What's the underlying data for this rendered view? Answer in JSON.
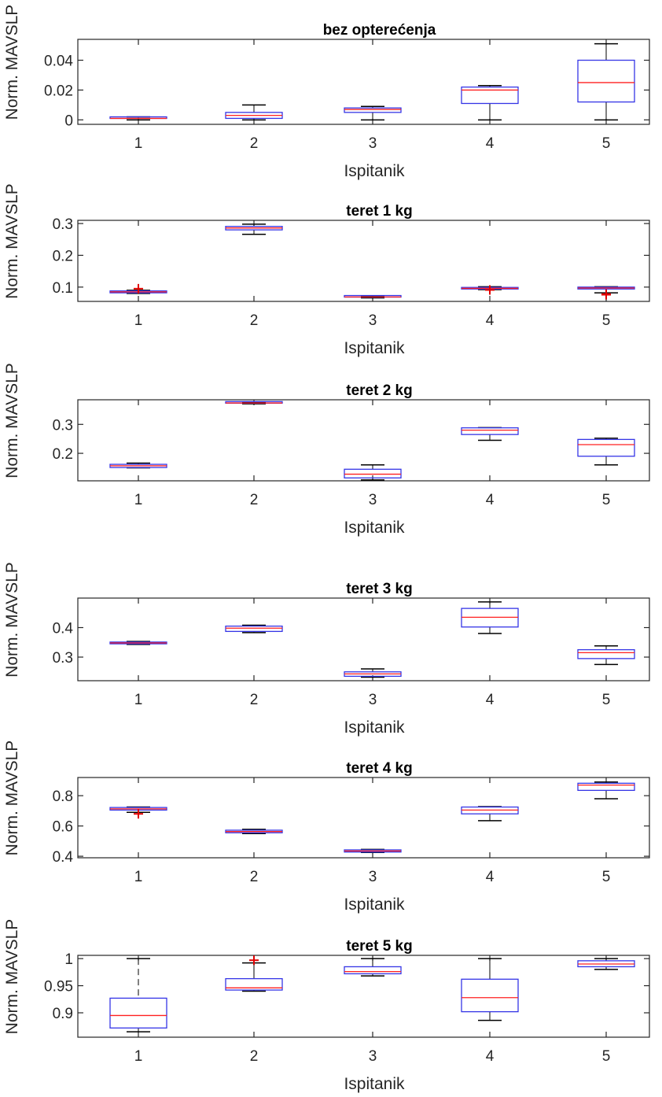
{
  "colors": {
    "box": "#3535e6",
    "median": "#ff2020",
    "whisker": "#000000",
    "outlier": "#e00000",
    "axis": "#262626",
    "text": "#262626"
  },
  "chart_data": [
    {
      "type": "box",
      "title": "bez opterećenja",
      "xlabel": "Ispitanik",
      "ylabel": "Norm. MAVSLP",
      "categories": [
        "1",
        "2",
        "3",
        "4",
        "5"
      ],
      "ylim": [
        -0.003,
        0.054
      ],
      "yticks": [
        0,
        0.02,
        0.04
      ],
      "ytick_labels": [
        "0",
        "0.02",
        "0.04"
      ],
      "boxes": [
        {
          "q1": 0.0005,
          "median": 0.001,
          "q3": 0.0015,
          "whisker_low": 0.0,
          "whisker_high": 0.002,
          "outliers": []
        },
        {
          "q1": 0.001,
          "median": 0.003,
          "q3": 0.005,
          "whisker_low": 0.0,
          "whisker_high": 0.01,
          "outliers": []
        },
        {
          "q1": 0.005,
          "median": 0.007,
          "q3": 0.008,
          "whisker_low": 0.0,
          "whisker_high": 0.009,
          "outliers": []
        },
        {
          "q1": 0.011,
          "median": 0.02,
          "q3": 0.022,
          "whisker_low": 0.0,
          "whisker_high": 0.023,
          "outliers": []
        },
        {
          "q1": 0.012,
          "median": 0.025,
          "q3": 0.04,
          "whisker_low": 0.0,
          "whisker_high": 0.051,
          "outliers": []
        }
      ]
    },
    {
      "type": "box",
      "title": "teret 1 kg",
      "xlabel": "Ispitanik",
      "ylabel": "Norm. MAVSLP",
      "categories": [
        "1",
        "2",
        "3",
        "4",
        "5"
      ],
      "ylim": [
        0.055,
        0.31
      ],
      "yticks": [
        0.1,
        0.2,
        0.3
      ],
      "ytick_labels": [
        "0.1",
        "0.2",
        "0.3"
      ],
      "boxes": [
        {
          "q1": 0.082,
          "median": 0.085,
          "q3": 0.088,
          "whisker_low": 0.08,
          "whisker_high": 0.09,
          "outliers": [
            0.095
          ]
        },
        {
          "q1": 0.28,
          "median": 0.286,
          "q3": 0.291,
          "whisker_low": 0.266,
          "whisker_high": 0.298,
          "outliers": []
        },
        {
          "q1": 0.067,
          "median": 0.069,
          "q3": 0.071,
          "whisker_low": 0.066,
          "whisker_high": 0.072,
          "outliers": []
        },
        {
          "q1": 0.094,
          "median": 0.096,
          "q3": 0.099,
          "whisker_low": 0.092,
          "whisker_high": 0.101,
          "outliers": [
            0.091
          ]
        },
        {
          "q1": 0.094,
          "median": 0.097,
          "q3": 0.1,
          "whisker_low": 0.082,
          "whisker_high": 0.101,
          "outliers": [
            0.076,
            0.078
          ]
        }
      ]
    },
    {
      "type": "box",
      "title": "teret 2 kg",
      "xlabel": "Ispitanik",
      "ylabel": "Norm. MAVSLP",
      "categories": [
        "1",
        "2",
        "3",
        "4",
        "5"
      ],
      "ylim": [
        0.105,
        0.385
      ],
      "yticks": [
        0.2,
        0.3
      ],
      "ytick_labels": [
        "0.2",
        "0.3"
      ],
      "boxes": [
        {
          "q1": 0.151,
          "median": 0.157,
          "q3": 0.162,
          "whisker_low": 0.15,
          "whisker_high": 0.166,
          "outliers": []
        },
        {
          "q1": 0.372,
          "median": 0.374,
          "q3": 0.376,
          "whisker_low": 0.371,
          "whisker_high": 0.377,
          "outliers": []
        },
        {
          "q1": 0.115,
          "median": 0.128,
          "q3": 0.145,
          "whisker_low": 0.108,
          "whisker_high": 0.16,
          "outliers": []
        },
        {
          "q1": 0.265,
          "median": 0.28,
          "q3": 0.288,
          "whisker_low": 0.245,
          "whisker_high": 0.289,
          "outliers": []
        },
        {
          "q1": 0.19,
          "median": 0.23,
          "q3": 0.248,
          "whisker_low": 0.16,
          "whisker_high": 0.252,
          "outliers": []
        }
      ]
    },
    {
      "type": "box",
      "title": "teret 3 kg",
      "xlabel": "Ispitanik",
      "ylabel": "Norm. MAVSLP",
      "categories": [
        "1",
        "2",
        "3",
        "4",
        "5"
      ],
      "ylim": [
        0.22,
        0.5
      ],
      "yticks": [
        0.3,
        0.4
      ],
      "ytick_labels": [
        "0.3",
        "0.4"
      ],
      "boxes": [
        {
          "q1": 0.345,
          "median": 0.348,
          "q3": 0.351,
          "whisker_low": 0.343,
          "whisker_high": 0.353,
          "outliers": []
        },
        {
          "q1": 0.387,
          "median": 0.398,
          "q3": 0.405,
          "whisker_low": 0.383,
          "whisker_high": 0.408,
          "outliers": []
        },
        {
          "q1": 0.235,
          "median": 0.243,
          "q3": 0.25,
          "whisker_low": 0.232,
          "whisker_high": 0.26,
          "outliers": []
        },
        {
          "q1": 0.402,
          "median": 0.435,
          "q3": 0.465,
          "whisker_low": 0.38,
          "whisker_high": 0.487,
          "outliers": []
        },
        {
          "q1": 0.295,
          "median": 0.315,
          "q3": 0.325,
          "whisker_low": 0.275,
          "whisker_high": 0.338,
          "outliers": []
        }
      ]
    },
    {
      "type": "box",
      "title": "teret 4 kg",
      "xlabel": "Ispitanik",
      "ylabel": "Norm. MAVSLP",
      "categories": [
        "1",
        "2",
        "3",
        "4",
        "5"
      ],
      "ylim": [
        0.39,
        0.92
      ],
      "yticks": [
        0.4,
        0.6,
        0.8
      ],
      "ytick_labels": [
        "0.4",
        "0.6",
        "0.8"
      ],
      "boxes": [
        {
          "q1": 0.705,
          "median": 0.713,
          "q3": 0.722,
          "whisker_low": 0.69,
          "whisker_high": 0.725,
          "outliers": [
            0.68
          ]
        },
        {
          "q1": 0.555,
          "median": 0.563,
          "q3": 0.572,
          "whisker_low": 0.55,
          "whisker_high": 0.578,
          "outliers": []
        },
        {
          "q1": 0.428,
          "median": 0.435,
          "q3": 0.442,
          "whisker_low": 0.425,
          "whisker_high": 0.445,
          "outliers": []
        },
        {
          "q1": 0.68,
          "median": 0.705,
          "q3": 0.725,
          "whisker_low": 0.635,
          "whisker_high": 0.728,
          "outliers": []
        },
        {
          "q1": 0.835,
          "median": 0.87,
          "q3": 0.882,
          "whisker_low": 0.78,
          "whisker_high": 0.89,
          "outliers": []
        }
      ]
    },
    {
      "type": "box",
      "title": "teret 5 kg",
      "xlabel": "Ispitanik",
      "ylabel": "Norm. MAVSLP",
      "categories": [
        "1",
        "2",
        "3",
        "4",
        "5"
      ],
      "ylim": [
        0.855,
        1.006
      ],
      "yticks": [
        0.9,
        0.95,
        1.0
      ],
      "ytick_labels": [
        "0.9",
        "0.95",
        "1"
      ],
      "boxes": [
        {
          "q1": 0.872,
          "median": 0.895,
          "q3": 0.927,
          "whisker_low": 0.865,
          "whisker_high": 1.0,
          "outliers": [],
          "dashed_whisker": true
        },
        {
          "q1": 0.942,
          "median": 0.946,
          "q3": 0.963,
          "whisker_low": 0.94,
          "whisker_high": 0.992,
          "outliers": [
            0.997
          ]
        },
        {
          "q1": 0.972,
          "median": 0.976,
          "q3": 0.985,
          "whisker_low": 0.968,
          "whisker_high": 1.0,
          "outliers": []
        },
        {
          "q1": 0.902,
          "median": 0.928,
          "q3": 0.962,
          "whisker_low": 0.886,
          "whisker_high": 1.0,
          "outliers": []
        },
        {
          "q1": 0.985,
          "median": 0.99,
          "q3": 0.996,
          "whisker_low": 0.98,
          "whisker_high": 1.0,
          "outliers": []
        }
      ]
    }
  ]
}
